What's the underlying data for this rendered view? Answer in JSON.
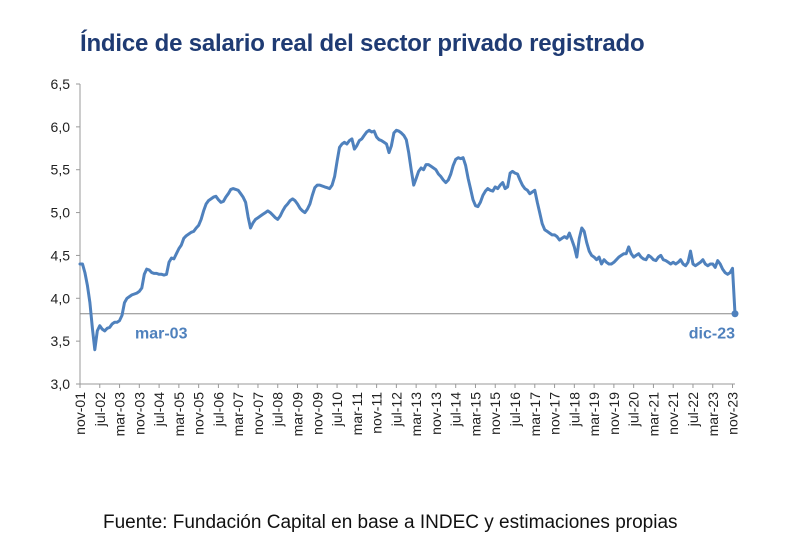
{
  "title": "Índice de salario real del sector privado registrado",
  "source": "Fuente: Fundación Capital en base a INDEC y estimaciones propias",
  "colors": {
    "title": "#1f3b73",
    "series": "#4f81bd",
    "reference_line": "#888888"
  },
  "chart_data": {
    "type": "line",
    "title": "Índice de salario real del sector privado registrado",
    "xlabel": "",
    "ylabel": "",
    "ylim": [
      3.0,
      6.5
    ],
    "yticks": [
      "3,0",
      "3,5",
      "4,0",
      "4,5",
      "5,0",
      "5,5",
      "6,0",
      "6,5"
    ],
    "grid": false,
    "legend": "none",
    "x_range": [
      "2001-11",
      "2023-12"
    ],
    "xtick_labels": [
      "nov-01",
      "jul-02",
      "mar-03",
      "nov-03",
      "jul-04",
      "mar-05",
      "nov-05",
      "jul-06",
      "mar-07",
      "nov-07",
      "jul-08",
      "mar-09",
      "nov-09",
      "jul-10",
      "mar-11",
      "nov-11",
      "jul-12",
      "mar-13",
      "nov-13",
      "jul-14",
      "mar-15",
      "nov-15",
      "jul-16",
      "mar-17",
      "nov-17",
      "jul-18",
      "mar-19",
      "nov-19",
      "jul-20",
      "mar-21",
      "nov-21",
      "jul-22",
      "mar-23",
      "nov-23"
    ],
    "reference_line": {
      "value": 3.82,
      "label_left": "mar-03",
      "label_right": "dic-23"
    },
    "series": [
      {
        "points": [
          [
            "2001-11",
            4.4
          ],
          [
            "2001-12",
            4.4
          ],
          [
            "2002-01",
            4.3
          ],
          [
            "2002-02",
            4.15
          ],
          [
            "2002-03",
            3.95
          ],
          [
            "2002-04",
            3.65
          ],
          [
            "2002-05",
            3.4
          ],
          [
            "2002-06",
            3.62
          ],
          [
            "2002-07",
            3.68
          ],
          [
            "2002-08",
            3.64
          ],
          [
            "2002-09",
            3.62
          ],
          [
            "2002-10",
            3.65
          ],
          [
            "2002-11",
            3.66
          ],
          [
            "2002-12",
            3.7
          ],
          [
            "2003-01",
            3.72
          ],
          [
            "2003-02",
            3.72
          ],
          [
            "2003-03",
            3.74
          ],
          [
            "2003-04",
            3.8
          ],
          [
            "2003-05",
            3.95
          ],
          [
            "2003-06",
            4.0
          ],
          [
            "2003-07",
            4.02
          ],
          [
            "2003-08",
            4.04
          ],
          [
            "2003-09",
            4.05
          ],
          [
            "2003-10",
            4.06
          ],
          [
            "2003-11",
            4.08
          ],
          [
            "2003-12",
            4.12
          ],
          [
            "2004-01",
            4.28
          ],
          [
            "2004-02",
            4.34
          ],
          [
            "2004-03",
            4.33
          ],
          [
            "2004-04",
            4.3
          ],
          [
            "2004-05",
            4.29
          ],
          [
            "2004-06",
            4.29
          ],
          [
            "2004-07",
            4.28
          ],
          [
            "2004-08",
            4.28
          ],
          [
            "2004-09",
            4.27
          ],
          [
            "2004-10",
            4.28
          ],
          [
            "2004-11",
            4.42
          ],
          [
            "2004-12",
            4.47
          ],
          [
            "2005-01",
            4.46
          ],
          [
            "2005-02",
            4.52
          ],
          [
            "2005-03",
            4.58
          ],
          [
            "2005-04",
            4.62
          ],
          [
            "2005-05",
            4.7
          ],
          [
            "2005-06",
            4.73
          ],
          [
            "2005-07",
            4.75
          ],
          [
            "2005-08",
            4.77
          ],
          [
            "2005-09",
            4.78
          ],
          [
            "2005-10",
            4.82
          ],
          [
            "2005-11",
            4.85
          ],
          [
            "2005-12",
            4.92
          ],
          [
            "2006-01",
            5.02
          ],
          [
            "2006-02",
            5.1
          ],
          [
            "2006-03",
            5.14
          ],
          [
            "2006-04",
            5.16
          ],
          [
            "2006-05",
            5.18
          ],
          [
            "2006-06",
            5.19
          ],
          [
            "2006-07",
            5.15
          ],
          [
            "2006-08",
            5.12
          ],
          [
            "2006-09",
            5.13
          ],
          [
            "2006-10",
            5.18
          ],
          [
            "2006-11",
            5.22
          ],
          [
            "2006-12",
            5.27
          ],
          [
            "2007-01",
            5.28
          ],
          [
            "2007-02",
            5.27
          ],
          [
            "2007-03",
            5.26
          ],
          [
            "2007-04",
            5.22
          ],
          [
            "2007-05",
            5.18
          ],
          [
            "2007-06",
            5.12
          ],
          [
            "2007-07",
            4.95
          ],
          [
            "2007-08",
            4.82
          ],
          [
            "2007-09",
            4.88
          ],
          [
            "2007-10",
            4.92
          ],
          [
            "2007-11",
            4.94
          ],
          [
            "2007-12",
            4.96
          ],
          [
            "2008-01",
            4.98
          ],
          [
            "2008-02",
            5.0
          ],
          [
            "2008-03",
            5.02
          ],
          [
            "2008-04",
            5.0
          ],
          [
            "2008-05",
            4.97
          ],
          [
            "2008-06",
            4.94
          ],
          [
            "2008-07",
            4.92
          ],
          [
            "2008-08",
            4.96
          ],
          [
            "2008-09",
            5.02
          ],
          [
            "2008-10",
            5.07
          ],
          [
            "2008-11",
            5.1
          ],
          [
            "2008-12",
            5.14
          ],
          [
            "2009-01",
            5.16
          ],
          [
            "2009-02",
            5.14
          ],
          [
            "2009-03",
            5.1
          ],
          [
            "2009-04",
            5.05
          ],
          [
            "2009-05",
            5.02
          ],
          [
            "2009-06",
            5.0
          ],
          [
            "2009-07",
            5.04
          ],
          [
            "2009-08",
            5.1
          ],
          [
            "2009-09",
            5.2
          ],
          [
            "2009-10",
            5.29
          ],
          [
            "2009-11",
            5.32
          ],
          [
            "2009-12",
            5.32
          ],
          [
            "2010-01",
            5.31
          ],
          [
            "2010-02",
            5.3
          ],
          [
            "2010-03",
            5.29
          ],
          [
            "2010-04",
            5.28
          ],
          [
            "2010-05",
            5.32
          ],
          [
            "2010-06",
            5.42
          ],
          [
            "2010-07",
            5.6
          ],
          [
            "2010-08",
            5.76
          ],
          [
            "2010-09",
            5.8
          ],
          [
            "2010-10",
            5.82
          ],
          [
            "2010-11",
            5.8
          ],
          [
            "2010-12",
            5.84
          ],
          [
            "2011-01",
            5.86
          ],
          [
            "2011-02",
            5.74
          ],
          [
            "2011-03",
            5.78
          ],
          [
            "2011-04",
            5.84
          ],
          [
            "2011-05",
            5.86
          ],
          [
            "2011-06",
            5.9
          ],
          [
            "2011-07",
            5.94
          ],
          [
            "2011-08",
            5.96
          ],
          [
            "2011-09",
            5.94
          ],
          [
            "2011-10",
            5.95
          ],
          [
            "2011-11",
            5.88
          ],
          [
            "2011-12",
            5.85
          ],
          [
            "2012-01",
            5.84
          ],
          [
            "2012-02",
            5.82
          ],
          [
            "2012-03",
            5.8
          ],
          [
            "2012-04",
            5.7
          ],
          [
            "2012-05",
            5.78
          ],
          [
            "2012-06",
            5.93
          ],
          [
            "2012-07",
            5.96
          ],
          [
            "2012-08",
            5.95
          ],
          [
            "2012-09",
            5.93
          ],
          [
            "2012-10",
            5.9
          ],
          [
            "2012-11",
            5.85
          ],
          [
            "2012-12",
            5.7
          ],
          [
            "2013-01",
            5.5
          ],
          [
            "2013-02",
            5.32
          ],
          [
            "2013-03",
            5.4
          ],
          [
            "2013-04",
            5.48
          ],
          [
            "2013-05",
            5.52
          ],
          [
            "2013-06",
            5.5
          ],
          [
            "2013-07",
            5.56
          ],
          [
            "2013-08",
            5.56
          ],
          [
            "2013-09",
            5.54
          ],
          [
            "2013-10",
            5.52
          ],
          [
            "2013-11",
            5.5
          ],
          [
            "2013-12",
            5.45
          ],
          [
            "2014-01",
            5.42
          ],
          [
            "2014-02",
            5.38
          ],
          [
            "2014-03",
            5.35
          ],
          [
            "2014-04",
            5.38
          ],
          [
            "2014-05",
            5.45
          ],
          [
            "2014-06",
            5.55
          ],
          [
            "2014-07",
            5.62
          ],
          [
            "2014-08",
            5.64
          ],
          [
            "2014-09",
            5.63
          ],
          [
            "2014-10",
            5.64
          ],
          [
            "2014-11",
            5.55
          ],
          [
            "2014-12",
            5.4
          ],
          [
            "2015-01",
            5.28
          ],
          [
            "2015-02",
            5.15
          ],
          [
            "2015-03",
            5.08
          ],
          [
            "2015-04",
            5.07
          ],
          [
            "2015-05",
            5.12
          ],
          [
            "2015-06",
            5.2
          ],
          [
            "2015-07",
            5.25
          ],
          [
            "2015-08",
            5.28
          ],
          [
            "2015-09",
            5.26
          ],
          [
            "2015-10",
            5.25
          ],
          [
            "2015-11",
            5.3
          ],
          [
            "2015-12",
            5.28
          ],
          [
            "2016-01",
            5.32
          ],
          [
            "2016-02",
            5.35
          ],
          [
            "2016-03",
            5.28
          ],
          [
            "2016-04",
            5.3
          ],
          [
            "2016-05",
            5.46
          ],
          [
            "2016-06",
            5.48
          ],
          [
            "2016-07",
            5.46
          ],
          [
            "2016-08",
            5.45
          ],
          [
            "2016-09",
            5.38
          ],
          [
            "2016-10",
            5.32
          ],
          [
            "2016-11",
            5.28
          ],
          [
            "2016-12",
            5.26
          ],
          [
            "2017-01",
            5.22
          ],
          [
            "2017-02",
            5.24
          ],
          [
            "2017-03",
            5.26
          ],
          [
            "2017-04",
            5.12
          ],
          [
            "2017-05",
            5.0
          ],
          [
            "2017-06",
            4.87
          ],
          [
            "2017-07",
            4.8
          ],
          [
            "2017-08",
            4.78
          ],
          [
            "2017-09",
            4.76
          ],
          [
            "2017-10",
            4.74
          ],
          [
            "2017-11",
            4.74
          ],
          [
            "2017-12",
            4.72
          ],
          [
            "2018-01",
            4.68
          ],
          [
            "2018-02",
            4.7
          ],
          [
            "2018-03",
            4.72
          ],
          [
            "2018-04",
            4.7
          ],
          [
            "2018-05",
            4.76
          ],
          [
            "2018-06",
            4.68
          ],
          [
            "2018-07",
            4.6
          ],
          [
            "2018-08",
            4.48
          ],
          [
            "2018-09",
            4.7
          ],
          [
            "2018-10",
            4.82
          ],
          [
            "2018-11",
            4.78
          ],
          [
            "2018-12",
            4.65
          ],
          [
            "2019-01",
            4.55
          ],
          [
            "2019-02",
            4.5
          ],
          [
            "2019-03",
            4.48
          ],
          [
            "2019-04",
            4.45
          ],
          [
            "2019-05",
            4.48
          ],
          [
            "2019-06",
            4.4
          ],
          [
            "2019-07",
            4.45
          ],
          [
            "2019-08",
            4.42
          ],
          [
            "2019-09",
            4.4
          ],
          [
            "2019-10",
            4.4
          ],
          [
            "2019-11",
            4.42
          ],
          [
            "2019-12",
            4.45
          ],
          [
            "2020-01",
            4.48
          ],
          [
            "2020-02",
            4.5
          ],
          [
            "2020-03",
            4.52
          ],
          [
            "2020-04",
            4.52
          ],
          [
            "2020-05",
            4.6
          ],
          [
            "2020-06",
            4.52
          ],
          [
            "2020-07",
            4.48
          ],
          [
            "2020-08",
            4.5
          ],
          [
            "2020-09",
            4.52
          ],
          [
            "2020-10",
            4.48
          ],
          [
            "2020-11",
            4.46
          ],
          [
            "2020-12",
            4.45
          ],
          [
            "2021-01",
            4.5
          ],
          [
            "2021-02",
            4.48
          ],
          [
            "2021-03",
            4.45
          ],
          [
            "2021-04",
            4.44
          ],
          [
            "2021-05",
            4.48
          ],
          [
            "2021-06",
            4.5
          ],
          [
            "2021-07",
            4.45
          ],
          [
            "2021-08",
            4.44
          ],
          [
            "2021-09",
            4.42
          ],
          [
            "2021-10",
            4.4
          ],
          [
            "2021-11",
            4.42
          ],
          [
            "2021-12",
            4.4
          ],
          [
            "2022-01",
            4.42
          ],
          [
            "2022-02",
            4.45
          ],
          [
            "2022-03",
            4.4
          ],
          [
            "2022-04",
            4.38
          ],
          [
            "2022-05",
            4.42
          ],
          [
            "2022-06",
            4.55
          ],
          [
            "2022-07",
            4.4
          ],
          [
            "2022-08",
            4.38
          ],
          [
            "2022-09",
            4.4
          ],
          [
            "2022-10",
            4.42
          ],
          [
            "2022-11",
            4.45
          ],
          [
            "2022-12",
            4.4
          ],
          [
            "2023-01",
            4.38
          ],
          [
            "2023-02",
            4.4
          ],
          [
            "2023-03",
            4.4
          ],
          [
            "2023-04",
            4.36
          ],
          [
            "2023-05",
            4.44
          ],
          [
            "2023-06",
            4.4
          ],
          [
            "2023-07",
            4.34
          ],
          [
            "2023-08",
            4.3
          ],
          [
            "2023-09",
            4.28
          ],
          [
            "2023-10",
            4.3
          ],
          [
            "2023-11",
            4.35
          ],
          [
            "2023-12",
            3.82
          ]
        ]
      }
    ]
  }
}
